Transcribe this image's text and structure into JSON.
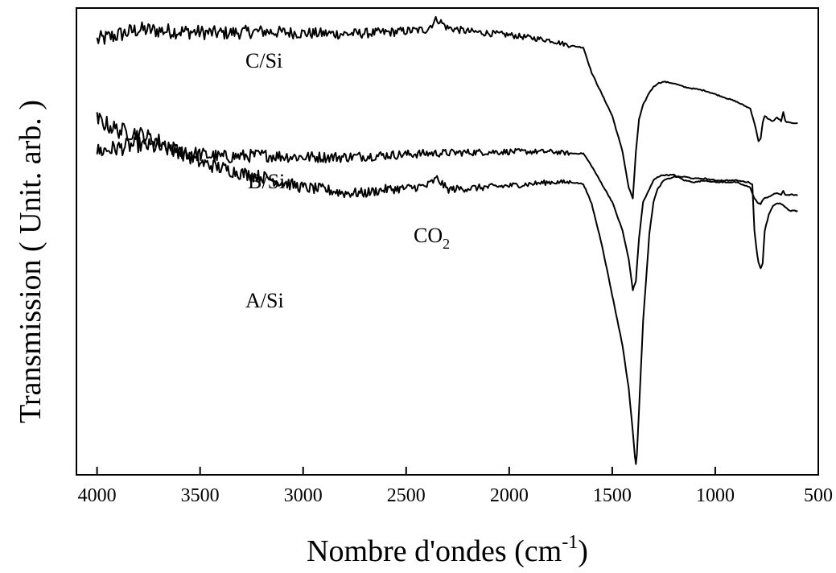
{
  "chart_data": {
    "type": "line",
    "title": "",
    "xlabel": "Nombre d'ondes",
    "xlabel_unit_base": "(cm",
    "xlabel_unit_sup": "-1",
    "xlabel_unit_close": ")",
    "ylabel": "Transmission ( Unit. arb. )",
    "xlim": [
      4100,
      500
    ],
    "x_reversed": true,
    "y_ticks_shown": false,
    "grid": false,
    "x_ticks": [
      4000,
      3500,
      3000,
      2500,
      2000,
      1500,
      1000,
      500
    ],
    "annotation": {
      "text": "CO",
      "subscript": "2",
      "near_x": 2350
    },
    "series": [
      {
        "name": "C/Si",
        "x": [
          4000,
          3800,
          3600,
          3400,
          3200,
          3000,
          2800,
          2600,
          2400,
          2350,
          2300,
          2200,
          2000,
          1800,
          1700,
          1640,
          1600,
          1500,
          1450,
          1420,
          1400,
          1385,
          1370,
          1350,
          1320,
          1300,
          1280,
          1250,
          1200,
          1150,
          1100,
          1050,
          1000,
          900,
          830,
          810,
          790,
          780,
          770,
          760,
          740,
          720,
          700,
          680,
          670,
          660,
          640,
          620,
          600
        ],
        "y": [
          9.1,
          9.4,
          9.35,
          9.3,
          9.35,
          9.3,
          9.28,
          9.32,
          9.4,
          9.7,
          9.45,
          9.35,
          9.25,
          9.1,
          8.95,
          8.9,
          8.2,
          7.0,
          6.0,
          5.0,
          4.7,
          6.0,
          6.9,
          7.3,
          7.65,
          7.8,
          7.9,
          7.95,
          7.9,
          7.8,
          7.75,
          7.7,
          7.6,
          7.4,
          7.2,
          6.8,
          6.3,
          6.35,
          6.8,
          7.0,
          6.9,
          6.85,
          6.95,
          6.85,
          7.1,
          6.85,
          6.8,
          6.8,
          6.8
        ]
      },
      {
        "name": "B/Si",
        "x": [
          4000,
          3900,
          3800,
          3700,
          3600,
          3400,
          3200,
          3000,
          2800,
          2600,
          2400,
          2200,
          2000,
          1800,
          1700,
          1640,
          1600,
          1500,
          1450,
          1420,
          1400,
          1385,
          1370,
          1350,
          1320,
          1300,
          1280,
          1250,
          1200,
          1150,
          1100,
          1050,
          1000,
          900,
          830,
          810,
          790,
          780,
          770,
          760,
          740,
          720,
          700,
          680,
          670,
          660,
          640,
          620,
          600
        ],
        "y": [
          6.0,
          6.1,
          6.2,
          6.1,
          6.0,
          5.85,
          5.9,
          5.85,
          5.85,
          5.9,
          5.95,
          5.98,
          6.0,
          6.0,
          5.95,
          5.95,
          5.6,
          4.6,
          3.8,
          3.0,
          2.15,
          2.4,
          3.6,
          4.6,
          4.95,
          5.2,
          5.3,
          5.35,
          5.35,
          5.2,
          5.15,
          5.2,
          5.15,
          5.15,
          5.0,
          4.7,
          4.55,
          4.55,
          4.65,
          4.7,
          4.75,
          4.8,
          4.85,
          4.8,
          4.9,
          4.8,
          4.8,
          4.8,
          4.78
        ]
      },
      {
        "name": "A/Si",
        "x": [
          4000,
          3900,
          3800,
          3700,
          3600,
          3500,
          3400,
          3300,
          3200,
          3100,
          3000,
          2900,
          2800,
          2700,
          2600,
          2500,
          2400,
          2350,
          2300,
          2200,
          2000,
          1800,
          1700,
          1640,
          1600,
          1550,
          1500,
          1450,
          1420,
          1400,
          1390,
          1385,
          1380,
          1370,
          1350,
          1320,
          1300,
          1280,
          1250,
          1200,
          1150,
          1100,
          1050,
          1000,
          900,
          840,
          820,
          810,
          800,
          790,
          780,
          770,
          760,
          740,
          720,
          700,
          680,
          660,
          640,
          620,
          600
        ],
        "y": [
          6.9,
          6.6,
          6.5,
          6.3,
          6.0,
          5.7,
          5.55,
          5.4,
          5.3,
          5.15,
          5.0,
          4.95,
          4.85,
          4.85,
          4.95,
          4.98,
          5.05,
          5.25,
          4.95,
          4.98,
          5.05,
          5.15,
          5.15,
          5.1,
          4.55,
          3.4,
          2.0,
          0.6,
          -0.6,
          -1.8,
          -2.5,
          -2.7,
          -2.4,
          -1.2,
          1.3,
          3.7,
          4.6,
          4.95,
          5.2,
          5.3,
          5.3,
          5.25,
          5.25,
          5.2,
          5.2,
          5.15,
          5.1,
          3.8,
          3.3,
          2.9,
          2.75,
          2.9,
          3.8,
          4.25,
          4.5,
          4.55,
          4.55,
          4.45,
          4.35,
          4.35,
          4.35
        ]
      }
    ]
  }
}
